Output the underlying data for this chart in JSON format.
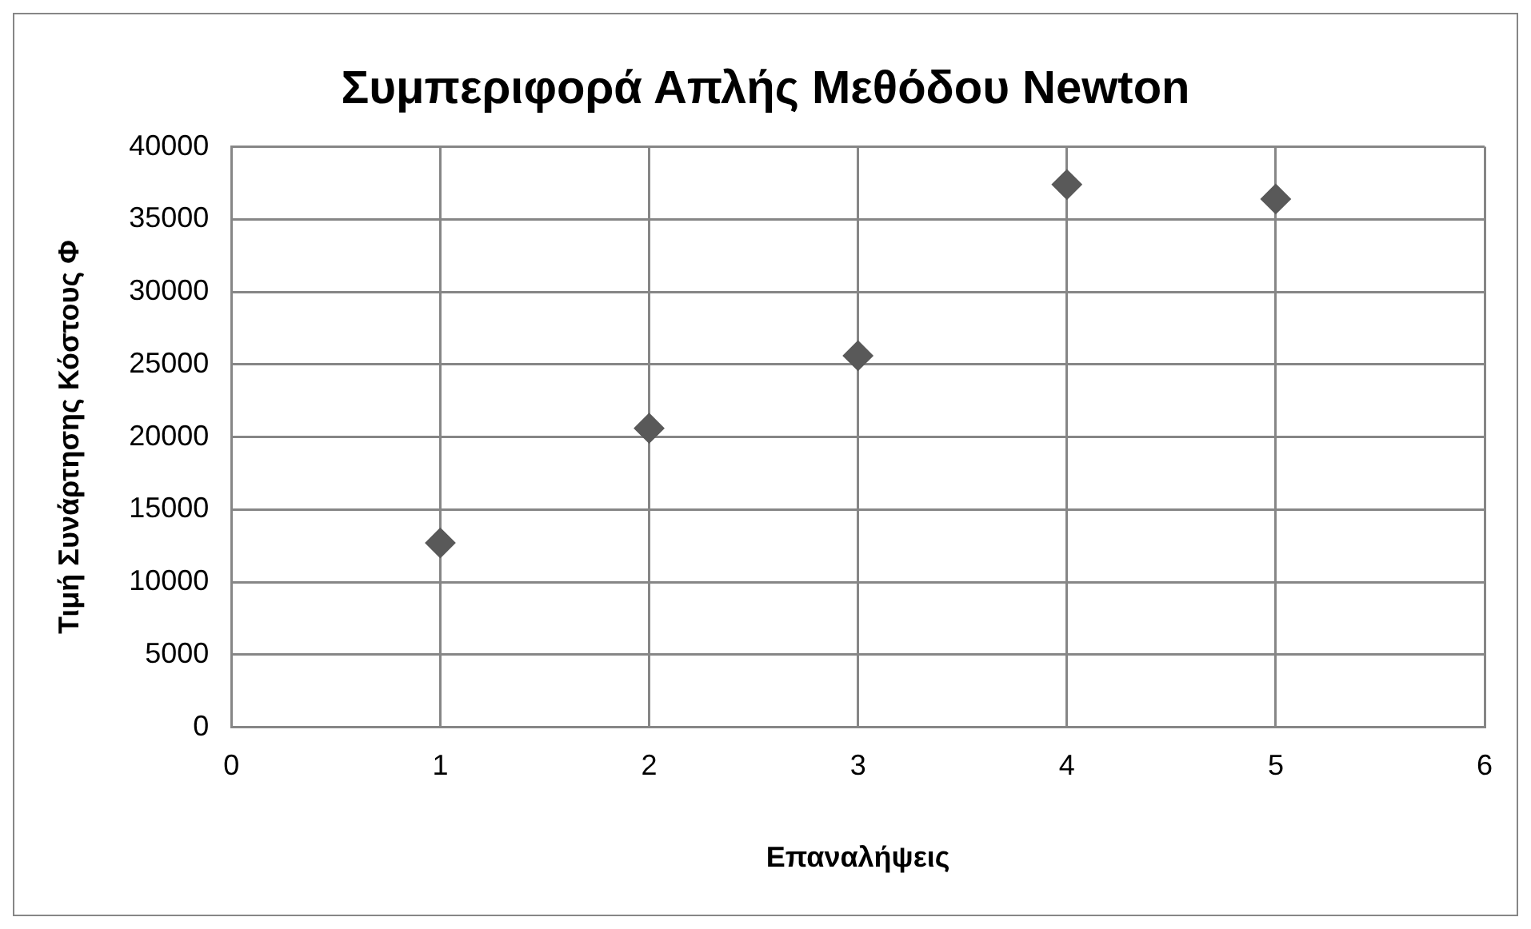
{
  "chart_data": {
    "type": "scatter",
    "title": "Συμπεριφορά Απλής Μεθόδου Newton",
    "xlabel": "Επαναλήψεις",
    "ylabel": "Τιμή Συνάρτησης Κόστους Φ",
    "x": [
      1,
      2,
      3,
      4,
      5
    ],
    "series": [
      {
        "color": "#595959",
        "values": [
          12700,
          20600,
          25600,
          37400,
          36400
        ]
      }
    ],
    "xlim": [
      0,
      6
    ],
    "xticks": [
      0,
      1,
      2,
      3,
      4,
      5,
      6
    ],
    "ylim": [
      0,
      40000
    ],
    "yticks": [
      0,
      5000,
      10000,
      15000,
      20000,
      25000,
      30000,
      35000,
      40000
    ],
    "grid": true,
    "legend": false,
    "marker": "diamond"
  }
}
